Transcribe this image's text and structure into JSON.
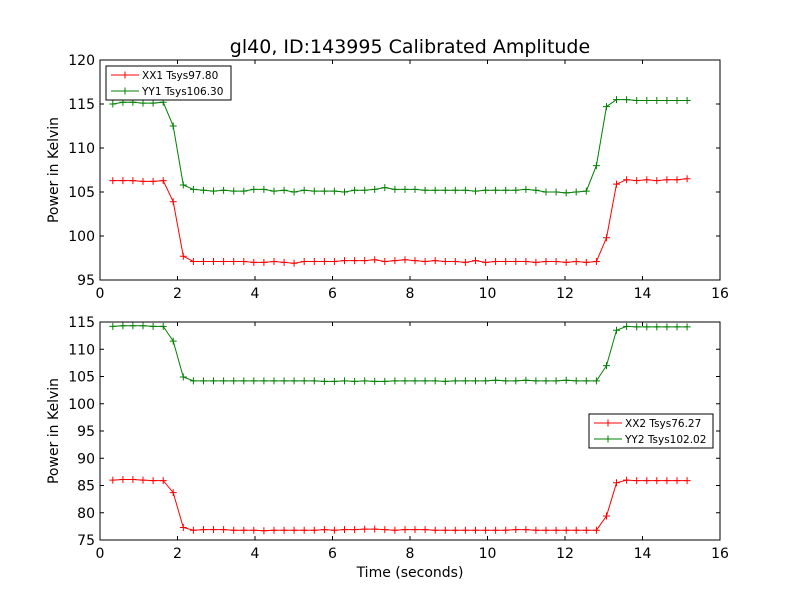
{
  "title": "gl40, ID:143995 Calibrated Amplitude",
  "chart_data": [
    {
      "type": "line",
      "title": "gl40, ID:143995 Calibrated Amplitude",
      "xlabel": "",
      "ylabel": "Power in Kelvin",
      "xlim": [
        0,
        16
      ],
      "ylim": [
        95,
        120
      ],
      "xticks": [
        0,
        2,
        4,
        6,
        8,
        10,
        12,
        14,
        16
      ],
      "yticks": [
        95,
        100,
        105,
        110,
        115,
        120
      ],
      "xtick_labels": [
        "0",
        "2",
        "4",
        "6",
        "8",
        "10",
        "12",
        "14",
        "16"
      ],
      "ytick_labels": [
        "95",
        "100",
        "105",
        "110",
        "115",
        "120"
      ],
      "legend_position": "top-left",
      "x": [
        0.33,
        0.59,
        0.85,
        1.11,
        1.37,
        1.63,
        1.89,
        2.15,
        2.41,
        2.67,
        2.93,
        3.19,
        3.45,
        3.71,
        3.97,
        4.23,
        4.49,
        4.75,
        5.01,
        5.27,
        5.53,
        5.79,
        6.05,
        6.31,
        6.57,
        6.83,
        7.09,
        7.35,
        7.61,
        7.87,
        8.13,
        8.39,
        8.65,
        8.91,
        9.17,
        9.43,
        9.69,
        9.95,
        10.21,
        10.47,
        10.73,
        10.99,
        11.25,
        11.51,
        11.77,
        12.03,
        12.29,
        12.55,
        12.81,
        13.07,
        13.33,
        13.59,
        13.85,
        14.11,
        14.37,
        14.63,
        14.89,
        15.15
      ],
      "series": [
        {
          "name": "XX1 Tsys97.80",
          "color": "#ff0000",
          "values": [
            106.3,
            106.3,
            106.3,
            106.2,
            106.2,
            106.3,
            103.9,
            97.7,
            97.1,
            97.1,
            97.1,
            97.1,
            97.1,
            97.1,
            97.0,
            97.0,
            97.1,
            97.0,
            96.9,
            97.1,
            97.1,
            97.1,
            97.1,
            97.2,
            97.2,
            97.2,
            97.3,
            97.1,
            97.2,
            97.3,
            97.2,
            97.1,
            97.2,
            97.1,
            97.1,
            97.0,
            97.2,
            97.0,
            97.1,
            97.1,
            97.1,
            97.1,
            97.0,
            97.1,
            97.1,
            97.0,
            97.1,
            97.0,
            97.1,
            99.8,
            105.9,
            106.4,
            106.3,
            106.4,
            106.3,
            106.4,
            106.4,
            106.5
          ]
        },
        {
          "name": "YY1 Tsys106.30",
          "color": "#008000",
          "values": [
            115.0,
            115.2,
            115.2,
            115.1,
            115.1,
            115.2,
            112.5,
            105.8,
            105.3,
            105.2,
            105.1,
            105.2,
            105.1,
            105.1,
            105.3,
            105.3,
            105.1,
            105.2,
            105.0,
            105.2,
            105.1,
            105.1,
            105.1,
            105.0,
            105.2,
            105.2,
            105.3,
            105.5,
            105.3,
            105.3,
            105.3,
            105.2,
            105.2,
            105.2,
            105.2,
            105.2,
            105.1,
            105.2,
            105.2,
            105.2,
            105.2,
            105.3,
            105.2,
            105.0,
            105.0,
            104.9,
            105.0,
            105.1,
            108.0,
            114.7,
            115.5,
            115.5,
            115.4,
            115.4,
            115.4,
            115.4,
            115.4,
            115.4
          ]
        }
      ]
    },
    {
      "type": "line",
      "title": "",
      "xlabel": "Time (seconds)",
      "ylabel": "Power in Kelvin",
      "xlim": [
        0,
        16
      ],
      "ylim": [
        75,
        115
      ],
      "xticks": [
        0,
        2,
        4,
        6,
        8,
        10,
        12,
        14,
        16
      ],
      "yticks": [
        75,
        80,
        85,
        90,
        95,
        100,
        105,
        110,
        115
      ],
      "xtick_labels": [
        "0",
        "2",
        "4",
        "6",
        "8",
        "10",
        "12",
        "14",
        "16"
      ],
      "ytick_labels": [
        "75",
        "80",
        "85",
        "90",
        "95",
        "100",
        "105",
        "110",
        "115"
      ],
      "legend_position": "center-right",
      "x": [
        0.33,
        0.59,
        0.85,
        1.11,
        1.37,
        1.63,
        1.89,
        2.15,
        2.41,
        2.67,
        2.93,
        3.19,
        3.45,
        3.71,
        3.97,
        4.23,
        4.49,
        4.75,
        5.01,
        5.27,
        5.53,
        5.79,
        6.05,
        6.31,
        6.57,
        6.83,
        7.09,
        7.35,
        7.61,
        7.87,
        8.13,
        8.39,
        8.65,
        8.91,
        9.17,
        9.43,
        9.69,
        9.95,
        10.21,
        10.47,
        10.73,
        10.99,
        11.25,
        11.51,
        11.77,
        12.03,
        12.29,
        12.55,
        12.81,
        13.07,
        13.33,
        13.59,
        13.85,
        14.11,
        14.37,
        14.63,
        14.89,
        15.15
      ],
      "series": [
        {
          "name": "XX2 Tsys76.27",
          "color": "#ff0000",
          "values": [
            86.0,
            86.1,
            86.1,
            86.0,
            85.9,
            85.9,
            83.7,
            77.3,
            76.8,
            76.9,
            76.9,
            76.9,
            76.8,
            76.8,
            76.8,
            76.7,
            76.8,
            76.8,
            76.8,
            76.8,
            76.8,
            76.9,
            76.8,
            76.9,
            76.9,
            77.0,
            77.0,
            76.9,
            76.8,
            76.9,
            76.9,
            76.9,
            76.8,
            76.8,
            76.8,
            76.8,
            76.8,
            76.8,
            76.8,
            76.8,
            76.9,
            76.9,
            76.8,
            76.8,
            76.8,
            76.8,
            76.8,
            76.8,
            76.8,
            79.4,
            85.5,
            86.0,
            85.9,
            85.9,
            85.9,
            85.9,
            85.9,
            85.9
          ]
        },
        {
          "name": "YY2 Tsys102.02",
          "color": "#008000",
          "values": [
            114.2,
            114.3,
            114.3,
            114.3,
            114.2,
            114.2,
            111.5,
            104.9,
            104.2,
            104.2,
            104.2,
            104.2,
            104.2,
            104.2,
            104.2,
            104.2,
            104.2,
            104.2,
            104.2,
            104.2,
            104.2,
            104.1,
            104.1,
            104.2,
            104.1,
            104.2,
            104.1,
            104.1,
            104.2,
            104.2,
            104.2,
            104.2,
            104.2,
            104.1,
            104.2,
            104.2,
            104.2,
            104.2,
            104.3,
            104.2,
            104.2,
            104.3,
            104.2,
            104.2,
            104.2,
            104.3,
            104.2,
            104.2,
            104.2,
            107.0,
            113.5,
            114.2,
            114.1,
            114.1,
            114.1,
            114.1,
            114.1,
            114.1
          ]
        }
      ]
    }
  ]
}
